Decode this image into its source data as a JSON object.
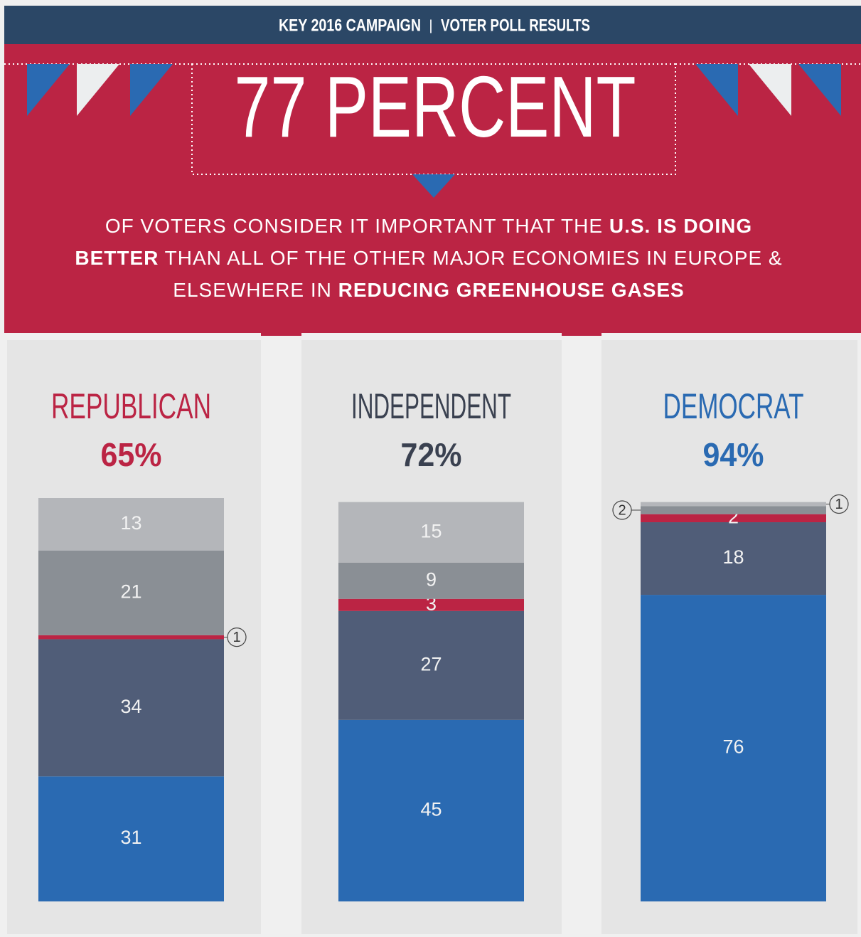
{
  "header": {
    "left": "KEY 2016 CAMPAIGN",
    "separator": "|",
    "right": "VOTER POLL RESULTS"
  },
  "headline": "77 PERCENT",
  "body": [
    [
      {
        "text": "OF VOTERS CONSIDER IT IMPORTANT THAT THE ",
        "bold": false
      },
      {
        "text": "U.S. IS DOING",
        "bold": true
      }
    ],
    [
      {
        "text": "BETTER",
        "bold": true
      },
      {
        "text": " THAN ALL OF THE OTHER MAJOR ECONOMIES IN EUROPE &",
        "bold": false
      }
    ],
    [
      {
        "text": "ELSEWHERE IN ",
        "bold": false
      },
      {
        "text": "REDUCING GREENHOUSE GASES",
        "bold": true
      }
    ]
  ],
  "chart_data": {
    "type": "stacked-bar",
    "categories": [
      "REPUBLICAN",
      "INDEPENDENT",
      "DEMOCRAT"
    ],
    "category_colors": [
      "#bb2444",
      "#3a4150",
      "#2a6ab2"
    ],
    "category_totals": [
      "65%",
      "72%",
      "94%"
    ],
    "ylim": [
      0,
      100
    ],
    "series": [
      {
        "color": "#2a6ab2",
        "values": [
          31,
          45,
          76
        ]
      },
      {
        "color": "#505d78",
        "values": [
          34,
          27,
          18
        ]
      },
      {
        "color": "#bb2444",
        "values": [
          1,
          3,
          2
        ]
      },
      {
        "color": "#8a8f95",
        "values": [
          21,
          9,
          2
        ]
      },
      {
        "color": "#b4b6ba",
        "values": [
          13,
          15,
          1
        ]
      }
    ]
  }
}
